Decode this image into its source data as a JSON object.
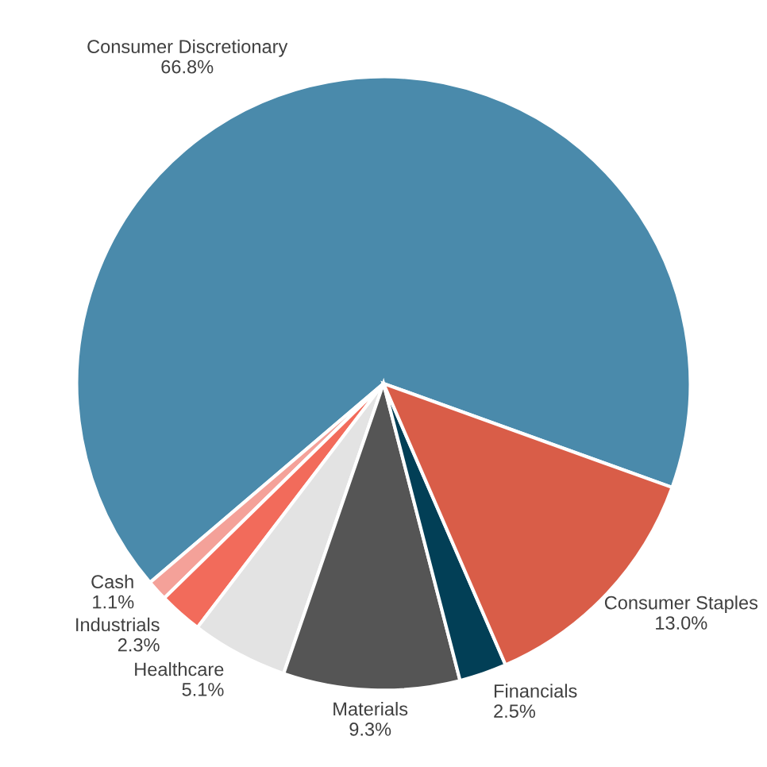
{
  "chart_data": {
    "type": "pie",
    "categories": [
      "Consumer Discretionary",
      "Cash",
      "Industrials",
      "Healthcare",
      "Materials",
      "Financials",
      "Consumer Staples"
    ],
    "values": [
      66.8,
      1.1,
      2.3,
      5.1,
      9.3,
      2.5,
      13.0
    ],
    "value_labels": [
      "66.8%",
      "1.1%",
      "2.3%",
      "5.1%",
      "9.3%",
      "2.5%",
      "13.0%"
    ],
    "colors": [
      "#4a8aab",
      "#f4a199",
      "#f26b5b",
      "#e3e3e3",
      "#555555",
      "#023f56",
      "#d95d48"
    ],
    "legend": false
  }
}
